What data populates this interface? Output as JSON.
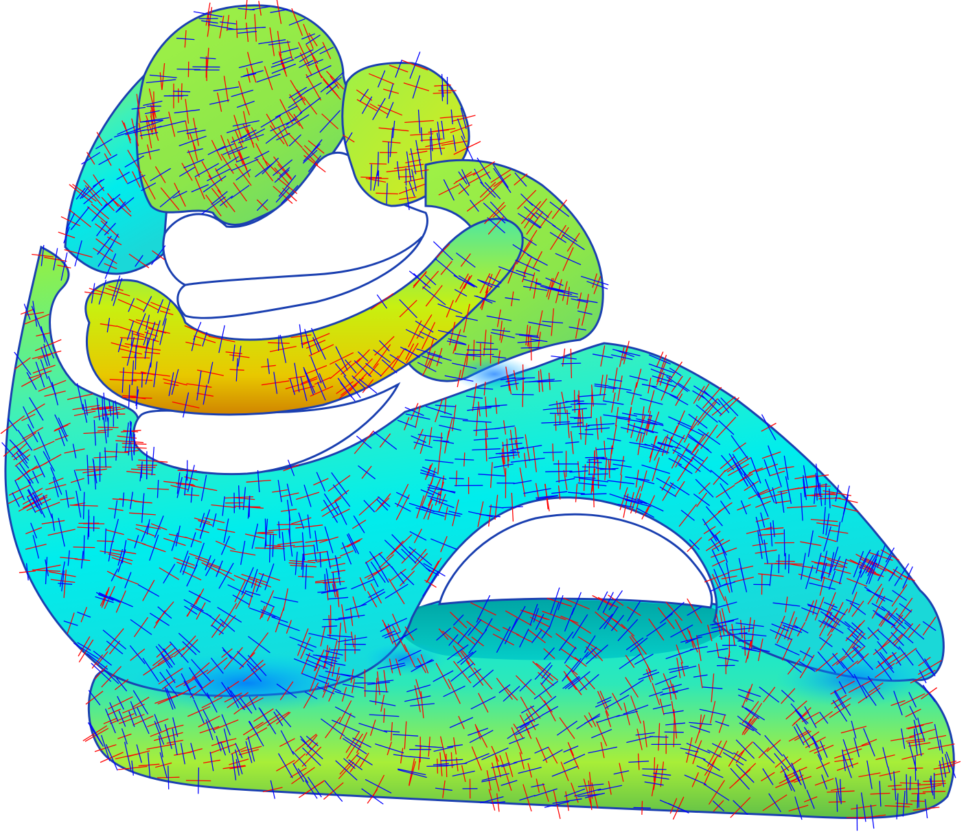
{
  "scene": {
    "subject": "sculpture-mesh",
    "colors": {
      "background": "#ffffff",
      "major_direction": "#ff0000",
      "minor_direction": "#0000ff",
      "cyan": "#00f0f0",
      "green": "#6fe84a",
      "yellow": "#d8f000",
      "orange": "#e8a000",
      "teal_dark": "#008a8a",
      "blue": "#0090ff"
    }
  }
}
